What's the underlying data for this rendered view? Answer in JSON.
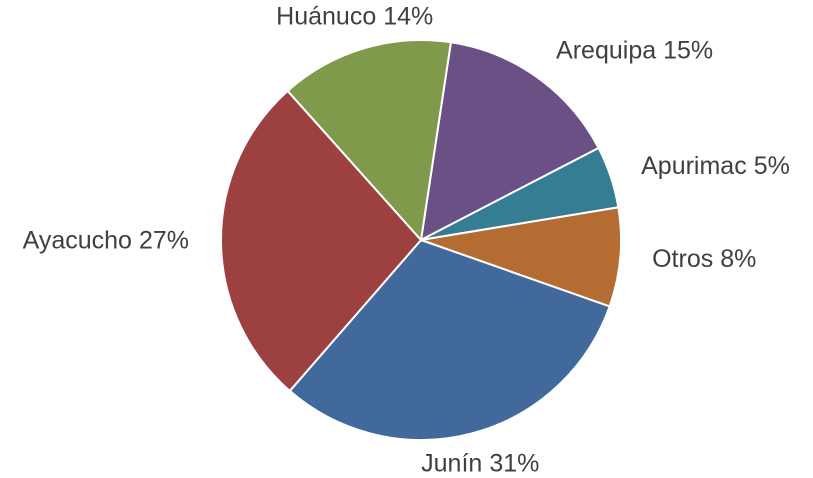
{
  "chart_data": {
    "type": "pie",
    "categories": [
      "Arequipa",
      "Apurimac",
      "Otros",
      "Junín",
      "Ayacucho",
      "Huánuco"
    ],
    "values": [
      15,
      5,
      8,
      31,
      27,
      14
    ],
    "value_labels": [
      "15%",
      "5%",
      "8%",
      "31%",
      "27%",
      "14%"
    ],
    "colors": [
      "#6a5084",
      "#357d92",
      "#b56c33",
      "#41699c",
      "#9c4140",
      "#7e9a4a"
    ]
  }
}
